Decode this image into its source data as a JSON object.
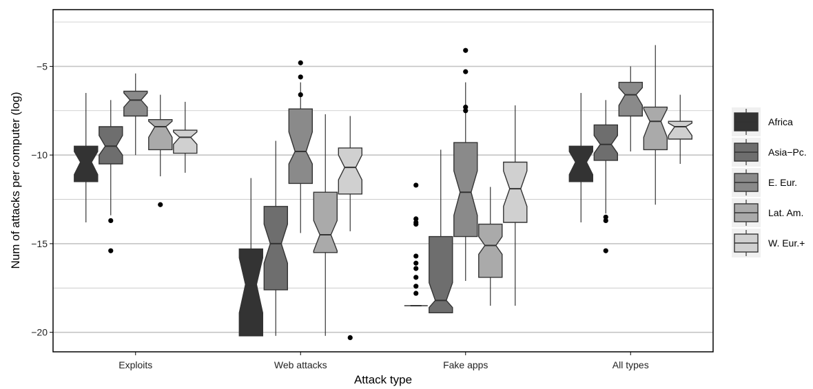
{
  "chart_data": {
    "type": "boxplot",
    "notched": true,
    "xlabel": "Attack type",
    "ylabel": "Num of attacks per computer (log)",
    "ylim": [
      -21.1,
      -1.8
    ],
    "yticks": [
      -5,
      -10,
      -15,
      -20
    ],
    "ytick_labels": [
      "−5",
      "−10",
      "−15",
      "−20"
    ],
    "categories": [
      "Exploits",
      "Web attacks",
      "Fake apps",
      "All types"
    ],
    "grid": true,
    "legend_position": "right",
    "series": [
      {
        "name": "Africa",
        "color": "#333333",
        "boxes": [
          {
            "whisker_low": -13.8,
            "q1": -11.5,
            "median": -10.4,
            "q3": -9.5,
            "whisker_high": -6.5,
            "notch_low": -11.1,
            "notch_high": -9.8,
            "outliers": []
          },
          {
            "whisker_low": -20.2,
            "q1": -20.2,
            "median": -17.3,
            "q3": -15.3,
            "whisker_high": -11.3,
            "notch_low": -18.9,
            "notch_high": -15.8,
            "outliers": []
          },
          {
            "whisker_low": -18.5,
            "q1": -18.5,
            "median": -18.5,
            "q3": -18.5,
            "whisker_high": -18.5,
            "notch_low": -18.5,
            "notch_high": -18.5,
            "outliers": [
              -11.7,
              -13.6,
              -13.8,
              -13.9,
              -15.7,
              -16.1,
              -16.4,
              -16.9,
              -17.4,
              -17.8
            ]
          },
          {
            "whisker_low": -13.8,
            "q1": -11.5,
            "median": -10.4,
            "q3": -9.5,
            "whisker_high": -6.5,
            "notch_low": -11.1,
            "notch_high": -9.8,
            "outliers": []
          }
        ]
      },
      {
        "name": "Asia−Pc.",
        "color": "#6e6e6e",
        "boxes": [
          {
            "whisker_low": -13.4,
            "q1": -10.5,
            "median": -9.5,
            "q3": -8.4,
            "whisker_high": -6.9,
            "notch_low": -10.0,
            "notch_high": -8.9,
            "outliers": [
              -13.7,
              -15.4
            ]
          },
          {
            "whisker_low": -20.2,
            "q1": -17.6,
            "median": -15.0,
            "q3": -12.9,
            "whisker_high": -9.2,
            "notch_low": -16.1,
            "notch_high": -13.9,
            "outliers": []
          },
          {
            "whisker_low": -18.9,
            "q1": -18.9,
            "median": -18.2,
            "q3": -14.6,
            "whisker_high": -9.7,
            "notch_low": -18.6,
            "notch_high": -17.2,
            "outliers": []
          },
          {
            "whisker_low": -13.3,
            "q1": -10.3,
            "median": -9.4,
            "q3": -8.3,
            "whisker_high": -6.9,
            "notch_low": -9.9,
            "notch_high": -8.9,
            "outliers": [
              -13.5,
              -13.7,
              -15.4
            ]
          }
        ]
      },
      {
        "name": "E. Eur.",
        "color": "#8a8a8a",
        "boxes": [
          {
            "whisker_low": -10.0,
            "q1": -7.8,
            "median": -6.9,
            "q3": -6.4,
            "whisker_high": -5.4,
            "notch_low": -7.3,
            "notch_high": -6.5,
            "outliers": []
          },
          {
            "whisker_low": -14.4,
            "q1": -11.6,
            "median": -9.8,
            "q3": -7.4,
            "whisker_high": -5.9,
            "notch_low": -10.5,
            "notch_high": -8.7,
            "outliers": [
              -4.8,
              -5.6,
              -6.6
            ]
          },
          {
            "whisker_low": -17.1,
            "q1": -14.6,
            "median": -12.1,
            "q3": -9.3,
            "whisker_high": -5.9,
            "notch_low": -13.4,
            "notch_high": -10.9,
            "outliers": [
              -4.1,
              -5.3,
              -7.3,
              -7.5
            ]
          },
          {
            "whisker_low": -9.8,
            "q1": -7.8,
            "median": -6.6,
            "q3": -5.9,
            "whisker_high": -5.0,
            "notch_low": -7.2,
            "notch_high": -6.2,
            "outliers": []
          }
        ]
      },
      {
        "name": "Lat. Am.",
        "color": "#aaaaaa",
        "boxes": [
          {
            "whisker_low": -11.2,
            "q1": -9.7,
            "median": -8.4,
            "q3": -8.0,
            "whisker_high": -6.6,
            "notch_low": -9.0,
            "notch_high": -8.1,
            "outliers": [
              -12.8
            ]
          },
          {
            "whisker_low": -20.2,
            "q1": -15.5,
            "median": -14.5,
            "q3": -12.1,
            "whisker_high": -7.7,
            "notch_low": -15.4,
            "notch_high": -13.7,
            "outliers": []
          },
          {
            "whisker_low": -18.5,
            "q1": -16.9,
            "median": -15.1,
            "q3": -13.9,
            "whisker_high": -11.8,
            "notch_low": -15.6,
            "notch_high": -14.6,
            "outliers": []
          },
          {
            "whisker_low": -12.8,
            "q1": -9.7,
            "median": -8.1,
            "q3": -7.3,
            "whisker_high": -3.8,
            "notch_low": -9.0,
            "notch_high": -7.4,
            "outliers": []
          }
        ]
      },
      {
        "name": "W. Eur.+",
        "color": "#d0d0d0",
        "boxes": [
          {
            "whisker_low": -11.0,
            "q1": -9.9,
            "median": -9.0,
            "q3": -8.6,
            "whisker_high": -7.0,
            "notch_low": -9.4,
            "notch_high": -8.7,
            "outliers": []
          },
          {
            "whisker_low": -14.3,
            "q1": -12.2,
            "median": -10.7,
            "q3": -9.6,
            "whisker_high": -7.8,
            "notch_low": -11.4,
            "notch_high": -10.0,
            "outliers": [
              -20.3
            ]
          },
          {
            "whisker_low": -18.5,
            "q1": -13.8,
            "median": -11.9,
            "q3": -10.4,
            "whisker_high": -7.2,
            "notch_low": -12.9,
            "notch_high": -10.9,
            "outliers": []
          },
          {
            "whisker_low": -10.5,
            "q1": -9.1,
            "median": -8.4,
            "q3": -8.1,
            "whisker_high": -6.6,
            "notch_low": -8.9,
            "notch_high": -8.2,
            "outliers": []
          }
        ]
      }
    ]
  }
}
